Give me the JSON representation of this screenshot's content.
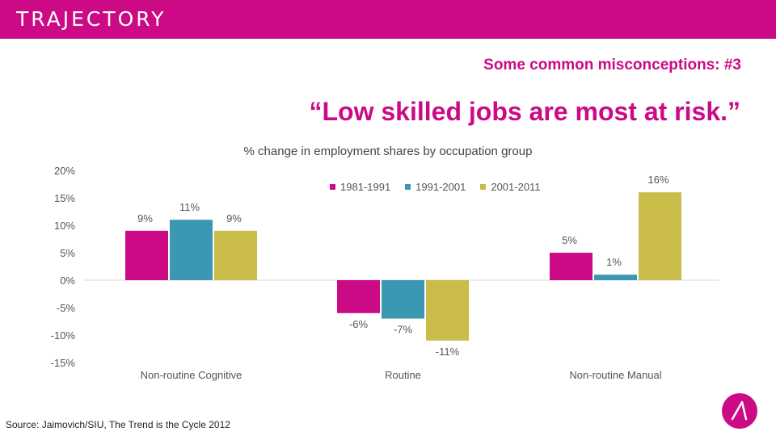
{
  "header": {
    "brand": "TRAJECTORY"
  },
  "subtitle": "Some common misconceptions: #3",
  "headline": "“Low skilled jobs are most at risk.”",
  "source": "Source: Jaimovich/SIU, The Trend is the Cycle 2012",
  "colors": {
    "brand": "#cc0a86",
    "series1": "#cc0a86",
    "series2": "#3c97b3",
    "series3": "#c9bc48",
    "axis": "#d9d9d9"
  },
  "icons": {
    "logo": "trajectory-logo-icon"
  },
  "chart_data": {
    "type": "bar",
    "title": "% change in employment shares by occupation group",
    "categories": [
      "Non-routine Cognitive",
      "Routine",
      "Non-routine Manual"
    ],
    "series": [
      {
        "name": "1981-1991",
        "values": [
          9,
          -6,
          5
        ],
        "labels": [
          "9%",
          "-6%",
          "5%"
        ]
      },
      {
        "name": "1991-2001",
        "values": [
          11,
          -7,
          1
        ],
        "labels": [
          "11%",
          "-7%",
          "1%"
        ]
      },
      {
        "name": "2001-2011",
        "values": [
          9,
          -11,
          16
        ],
        "labels": [
          "9%",
          "-11%",
          "16%"
        ]
      }
    ],
    "yticks": [
      20,
      15,
      10,
      5,
      0,
      -5,
      -10,
      -15
    ],
    "ytick_labels": [
      "20%",
      "15%",
      "10%",
      "5%",
      "0%",
      "-5%",
      "-10%",
      "-15%"
    ],
    "ylim": [
      -15,
      20
    ],
    "grid": false,
    "legend_position": "top-right"
  }
}
